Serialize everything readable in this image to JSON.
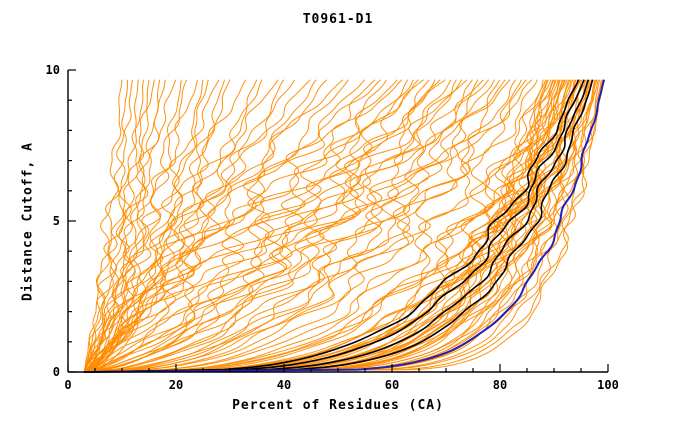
{
  "chart_data": {
    "type": "line",
    "title": "T0961-D1",
    "xlabel": "Percent of Residues (CA)",
    "ylabel": "Distance Cutoff, A",
    "xlim": [
      0,
      100
    ],
    "ylim": [
      0,
      10
    ],
    "x_ticks": [
      0,
      20,
      40,
      60,
      80,
      100
    ],
    "y_ticks": [
      0,
      5,
      10
    ],
    "x_minor_step": 5,
    "y_minor_step": 1,
    "grid": "off",
    "legend": "none",
    "colors": {
      "model": "#ff8c00",
      "highlight": "#000000",
      "best": "#2020c0"
    },
    "curve_model": "x(y) = 3 + (final - 3) * (y/9.7)^(1/shape); each curve entry is [final_percent, shape, wiggle_amp, phase]; curves depict per-model percent of CA residues under distance cutoff",
    "curves": {
      "orange": [
        [
          99,
          10,
          1,
          0.3
        ],
        [
          98.5,
          8,
          1.2,
          1.1
        ],
        [
          98,
          6,
          1.5,
          2.0
        ],
        [
          97.5,
          9,
          1,
          2.8
        ],
        [
          97,
          5,
          1.8,
          0.7
        ],
        [
          96.5,
          7,
          1.3,
          1.9
        ],
        [
          96,
          4,
          2,
          2.5
        ],
        [
          95.5,
          6.5,
          1.4,
          0.2
        ],
        [
          95,
          3.5,
          2.2,
          1.5
        ],
        [
          94.5,
          5,
          1.6,
          2.9
        ],
        [
          94,
          8,
          1.1,
          0.9
        ],
        [
          93.5,
          4,
          2.3,
          1.7
        ],
        [
          93,
          6,
          1.5,
          2.3
        ],
        [
          92.5,
          3,
          2.5,
          0.5
        ],
        [
          92,
          5.5,
          1.7,
          1.3
        ],
        [
          91.5,
          7,
          1.2,
          2.7
        ],
        [
          91,
          4.5,
          2,
          0.8
        ],
        [
          90.5,
          3.2,
          2.4,
          1.6
        ],
        [
          90,
          6,
          1.5,
          2.2
        ],
        [
          89.5,
          4,
          2.1,
          0.4
        ],
        [
          89,
          5,
          1.8,
          1.2
        ],
        [
          88.5,
          3.5,
          2.3,
          2.6
        ],
        [
          88,
          6.5,
          1.4,
          0.6
        ],
        [
          98.8,
          11,
          0.8,
          1.4
        ],
        [
          97.8,
          7.5,
          1.2,
          2.1
        ],
        [
          96.8,
          5.5,
          1.6,
          0.1
        ],
        [
          95.8,
          8.5,
          1.1,
          1.8
        ],
        [
          94.8,
          4.2,
          2.1,
          2.4
        ],
        [
          93.8,
          7,
          1.3,
          0.9
        ],
        [
          92.8,
          5,
          1.8,
          1.1
        ],
        [
          91.8,
          3.8,
          2.2,
          2.0
        ],
        [
          90.8,
          6.2,
          1.5,
          0.3
        ],
        [
          89.8,
          4.8,
          1.9,
          1.5
        ],
        [
          88.8,
          3.3,
          2.4,
          2.8
        ],
        [
          99.2,
          9,
          0.9,
          0.8
        ],
        [
          98.2,
          6.8,
          1.3,
          1.6
        ],
        [
          97.2,
          4.6,
          1.9,
          2.2
        ],
        [
          96.2,
          8,
          1.1,
          0.5
        ],
        [
          95.2,
          5.8,
          1.6,
          1.0
        ],
        [
          94.2,
          3.6,
          2.3,
          1.9
        ],
        [
          93.2,
          6.4,
          1.4,
          2.5
        ],
        [
          92.2,
          4.4,
          2,
          0.2
        ],
        [
          91.2,
          7.2,
          1.2,
          1.3
        ],
        [
          90.2,
          5.2,
          1.7,
          2.7
        ],
        [
          87,
          2.8,
          2.6,
          0.4
        ],
        [
          85,
          2.2,
          2.8,
          1.2
        ],
        [
          83,
          2.5,
          2.7,
          2.0
        ],
        [
          81,
          1.8,
          3,
          2.8
        ],
        [
          79,
          2.1,
          2.9,
          0.6
        ],
        [
          77,
          1.6,
          3.1,
          1.4
        ],
        [
          75,
          2.4,
          2.6,
          2.2
        ],
        [
          73,
          1.5,
          3.2,
          0.8
        ],
        [
          71,
          1.9,
          3,
          1.6
        ],
        [
          69,
          1.4,
          3.2,
          2.4
        ],
        [
          67,
          1.7,
          3.1,
          0.2
        ],
        [
          65,
          1.3,
          3.3,
          1.0
        ],
        [
          63,
          1.6,
          3.1,
          1.8
        ],
        [
          61,
          1.2,
          3.4,
          2.6
        ],
        [
          59,
          1.5,
          3.2,
          0.5
        ],
        [
          57,
          1.1,
          3.4,
          1.3
        ],
        [
          86,
          1.9,
          2.9,
          2.1
        ],
        [
          82,
          1.5,
          3.1,
          2.9
        ],
        [
          78,
          1.3,
          3.3,
          0.7
        ],
        [
          74,
          1.2,
          3.3,
          1.5
        ],
        [
          70,
          1.1,
          3.4,
          2.3
        ],
        [
          66,
          1.0,
          3.5,
          0.1
        ],
        [
          62,
          0.95,
          3.5,
          0.9
        ],
        [
          58,
          0.9,
          3.5,
          1.7
        ],
        [
          84,
          3.2,
          2.4,
          2.5
        ],
        [
          80,
          2.9,
          2.5,
          0.3
        ],
        [
          76,
          2.6,
          2.6,
          1.1
        ],
        [
          72,
          2.3,
          2.7,
          1.9
        ],
        [
          68,
          2.0,
          2.8,
          2.7
        ],
        [
          64,
          1.8,
          2.9,
          0.6
        ],
        [
          10,
          1.5,
          1,
          0.4
        ],
        [
          12,
          1.2,
          1.2,
          1.2
        ],
        [
          14,
          1.8,
          1.1,
          2.0
        ],
        [
          16,
          1.0,
          1.4,
          2.8
        ],
        [
          18,
          1.4,
          1.3,
          0.6
        ],
        [
          20,
          0.9,
          1.6,
          1.4
        ],
        [
          22,
          1.3,
          1.5,
          2.2
        ],
        [
          24,
          1.1,
          1.7,
          0.8
        ],
        [
          26,
          1.6,
          1.4,
          1.6
        ],
        [
          28,
          1.0,
          1.8,
          2.4
        ],
        [
          30,
          1.4,
          1.6,
          0.2
        ],
        [
          33,
          0.95,
          2,
          1.0
        ],
        [
          36,
          1.2,
          1.9,
          1.8
        ],
        [
          39,
          0.9,
          2.1,
          2.6
        ],
        [
          42,
          1.1,
          2,
          0.5
        ],
        [
          45,
          0.85,
          2.2,
          1.3
        ],
        [
          48,
          1.05,
          2.1,
          2.1
        ],
        [
          51,
          0.8,
          2.3,
          2.9
        ],
        [
          11,
          2.2,
          0.9,
          0.7
        ],
        [
          13,
          2.6,
          0.8,
          1.5
        ],
        [
          15,
          3.0,
          0.8,
          2.3
        ],
        [
          17,
          2.0,
          1,
          0.1
        ],
        [
          21,
          1.8,
          1.2,
          0.9
        ],
        [
          25,
          2.2,
          1.1,
          1.7
        ],
        [
          29,
          1.7,
          1.4,
          2.5
        ],
        [
          35,
          1.5,
          1.6,
          0.3
        ],
        [
          40,
          1.3,
          1.8,
          1.1
        ],
        [
          46,
          1.2,
          1.9,
          1.9
        ],
        [
          52,
          1.1,
          2.1,
          2.7
        ],
        [
          55,
          1.0,
          2.2,
          0.6
        ]
      ],
      "black": [
        [
          97.2,
          5.5,
          0.6,
          0.9
        ],
        [
          96.4,
          4.8,
          0.7,
          1.8
        ],
        [
          95.6,
          4.2,
          0.8,
          2.6
        ],
        [
          94.6,
          3.8,
          0.9,
          0.4
        ]
      ],
      "blue": [
        [
          99.3,
          7.5,
          0.4,
          1.2
        ]
      ]
    }
  }
}
